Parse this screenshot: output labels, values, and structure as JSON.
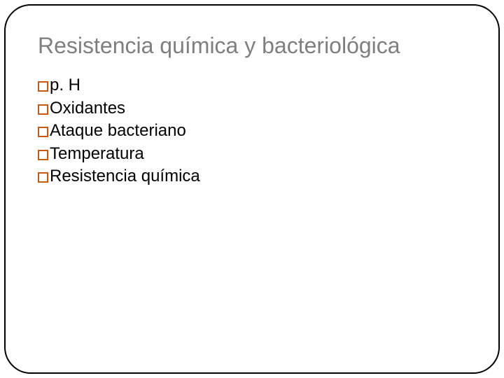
{
  "slide": {
    "title": "Resistencia química y bacteriológica",
    "title_color": "#7f7f7f",
    "title_fontsize": 32,
    "border_color": "#000000",
    "border_radius": 38,
    "background_color": "#ffffff",
    "bullet": {
      "type": "hollow-square",
      "border_color": "#c55a11",
      "border_width": 2,
      "size": 15
    },
    "items": [
      {
        "label": "p. H"
      },
      {
        "label": "Oxidantes"
      },
      {
        "label": "Ataque bacteriano"
      },
      {
        "label": "Temperatura"
      },
      {
        "label": "Resistencia química"
      }
    ],
    "item_fontsize": 24,
    "item_color": "#000000"
  }
}
